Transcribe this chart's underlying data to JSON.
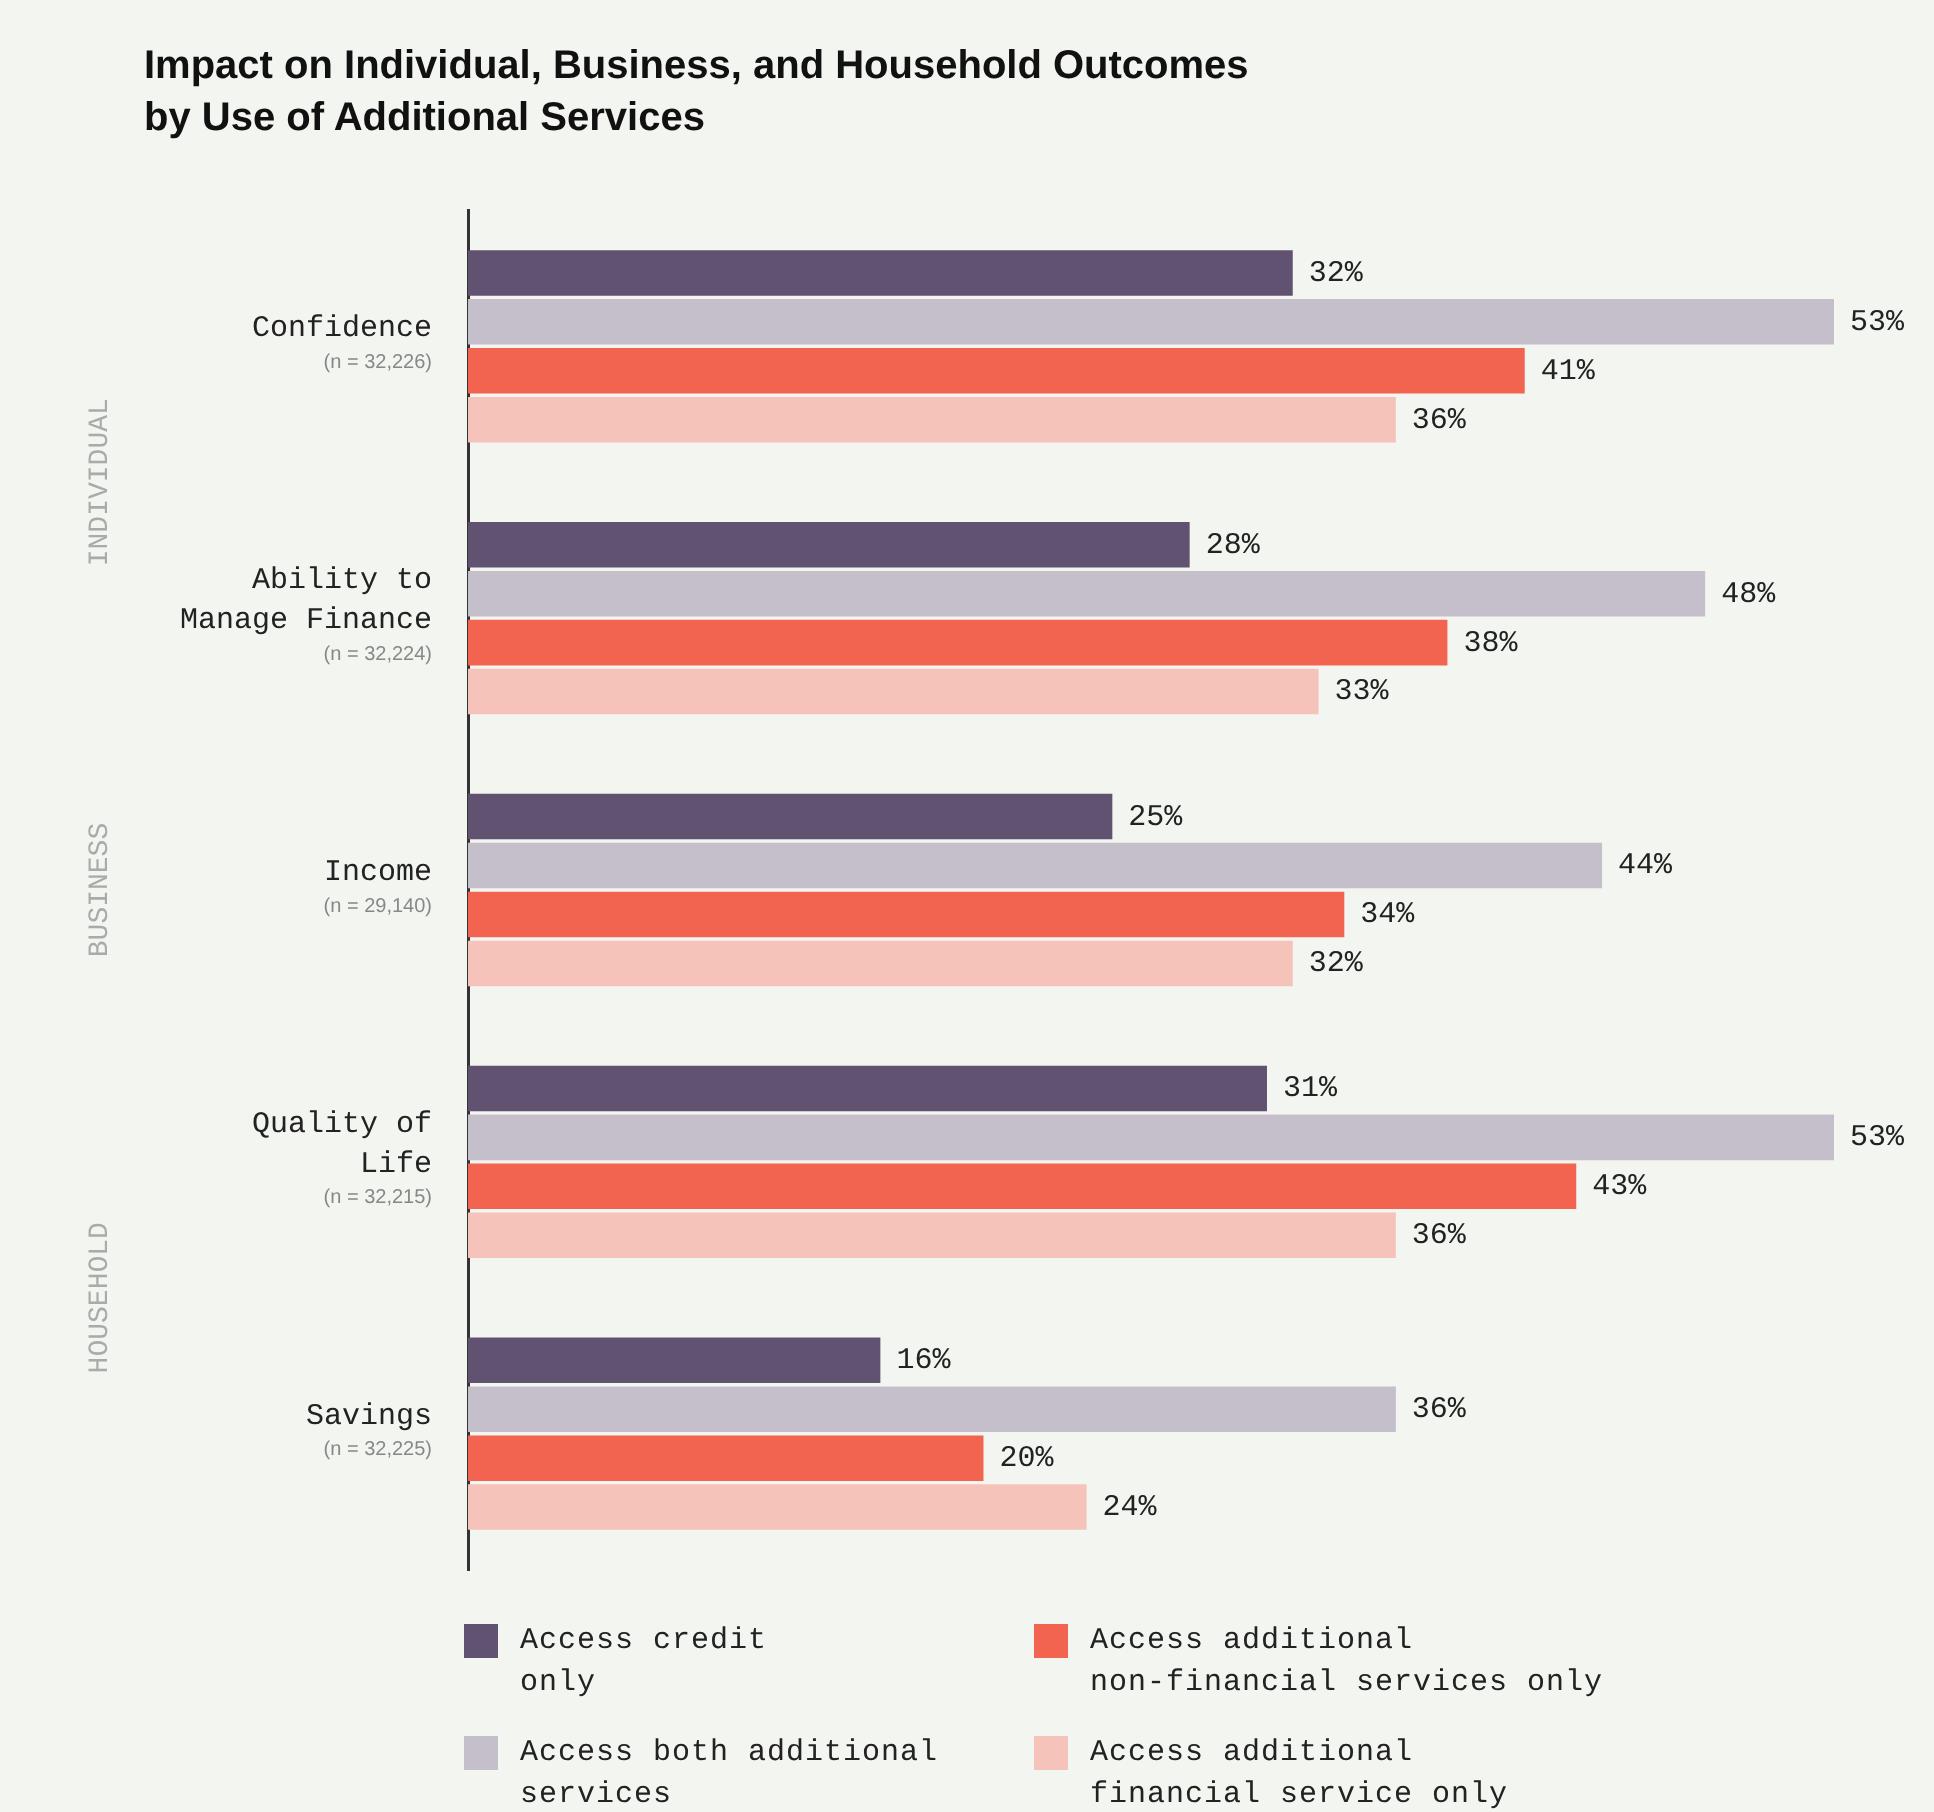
{
  "chart_data": {
    "type": "bar",
    "orientation": "horizontal",
    "title": "Impact on Individual, Business, and Household Outcomes\nby Use of Additional Services",
    "categories": [
      "Confidence\n(n = 32,226)",
      "Ability to\nManage Finance\n(n = 32,224)",
      "Income\n(n = 29,140)",
      "Quality of\nLife\n(n = 32,215)",
      "Savings\n(n = 32,225)"
    ],
    "series": [
      {
        "name": "Access credit\nonly",
        "color": "#625272",
        "values": [
          32,
          28,
          25,
          31,
          16
        ],
        "value_labels": [
          "32%",
          "28%",
          "25%",
          "31%",
          "16%"
        ]
      },
      {
        "name": "Access both additional\nservices",
        "color": "#c5bfcc",
        "values": [
          53,
          48,
          44,
          53,
          36
        ],
        "value_labels": [
          "53%",
          "48%",
          "44%",
          "53%",
          "36%"
        ]
      },
      {
        "name": "Access additional\nnon-financial services only",
        "color": "#f26450",
        "values": [
          41,
          38,
          34,
          43,
          20
        ],
        "value_labels": [
          "41%",
          "38%",
          "34%",
          "43%",
          "20%"
        ]
      },
      {
        "name": "Access additional\nfinancial service only",
        "color": "#f6c3bb",
        "values": [
          36,
          33,
          32,
          36,
          24
        ],
        "value_labels": [
          "36%",
          "33%",
          "32%",
          "36%",
          "24%"
        ]
      }
    ],
    "xlim": [
      0,
      53
    ],
    "tick_labels": "y",
    "grid": false,
    "legend": "bottom",
    "annotations": [
      "INDIVIDUAL",
      "BUSINESS",
      "HOUSEHOLD"
    ]
  }
}
